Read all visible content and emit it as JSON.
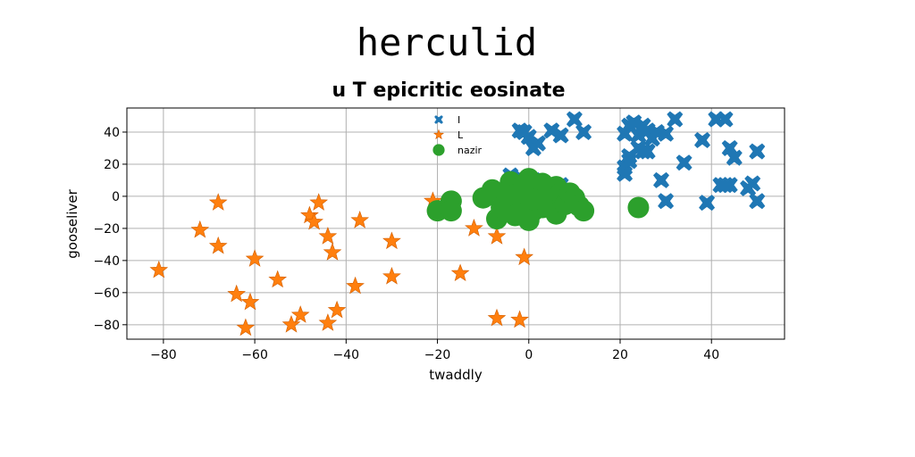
{
  "chart_data": {
    "type": "scatter",
    "suptitle": "herculid",
    "title": "u T epicritic eosinate",
    "xlabel": "twaddly",
    "ylabel": "gooseliver",
    "xlim": [
      -88,
      56
    ],
    "ylim": [
      -89,
      55
    ],
    "xticks": [
      -80,
      -60,
      -40,
      -20,
      0,
      20,
      40
    ],
    "yticks": [
      -80,
      -60,
      -40,
      -20,
      0,
      20,
      40
    ],
    "grid": true,
    "legend_position": "upper-center",
    "series": [
      {
        "name": "I",
        "marker": "x",
        "color": "#1f77b4",
        "points": [
          [
            -2,
            41
          ],
          [
            -1,
            40
          ],
          [
            0,
            37
          ],
          [
            1,
            30
          ],
          [
            2,
            33
          ],
          [
            5,
            41
          ],
          [
            7,
            38
          ],
          [
            10,
            48
          ],
          [
            12,
            40
          ],
          [
            21,
            39
          ],
          [
            22,
            44
          ],
          [
            23,
            46
          ],
          [
            24,
            38
          ],
          [
            25,
            44
          ],
          [
            26,
            41
          ],
          [
            27,
            36
          ],
          [
            28,
            40
          ],
          [
            30,
            39
          ],
          [
            32,
            48
          ],
          [
            22,
            25
          ],
          [
            24,
            30
          ],
          [
            25,
            28
          ],
          [
            26,
            28
          ],
          [
            21,
            18
          ],
          [
            21,
            14
          ],
          [
            22,
            22
          ],
          [
            29,
            10
          ],
          [
            30,
            -3
          ],
          [
            34,
            21
          ],
          [
            38,
            35
          ],
          [
            39,
            -4
          ],
          [
            41,
            48
          ],
          [
            43,
            48
          ],
          [
            42,
            7
          ],
          [
            43,
            7
          ],
          [
            44,
            7
          ],
          [
            44,
            30
          ],
          [
            45,
            24
          ],
          [
            48,
            5
          ],
          [
            49,
            8
          ],
          [
            50,
            28
          ],
          [
            50,
            -3
          ],
          [
            -4,
            13
          ],
          [
            -2,
            12
          ],
          [
            1,
            10
          ],
          [
            7,
            7
          ]
        ]
      },
      {
        "name": "L",
        "marker": "star",
        "color": "#ff7f0e",
        "points": [
          [
            -81,
            -46
          ],
          [
            -72,
            -21
          ],
          [
            -68,
            -4
          ],
          [
            -68,
            -31
          ],
          [
            -64,
            -61
          ],
          [
            -62,
            -82
          ],
          [
            -61,
            -66
          ],
          [
            -60,
            -39
          ],
          [
            -55,
            -52
          ],
          [
            -52,
            -80
          ],
          [
            -50,
            -74
          ],
          [
            -48,
            -12
          ],
          [
            -47,
            -16
          ],
          [
            -46,
            -4
          ],
          [
            -44,
            -25
          ],
          [
            -44,
            -79
          ],
          [
            -43,
            -35
          ],
          [
            -42,
            -71
          ],
          [
            -38,
            -56
          ],
          [
            -37,
            -15
          ],
          [
            -30,
            -28
          ],
          [
            -30,
            -50
          ],
          [
            -21,
            -3
          ],
          [
            -15,
            -48
          ],
          [
            -12,
            -20
          ],
          [
            -7,
            -25
          ],
          [
            -7,
            -76
          ],
          [
            -2,
            -77
          ],
          [
            -1,
            -38
          ]
        ]
      },
      {
        "name": "nazir",
        "marker": "circle",
        "color": "#2ca02c",
        "points": [
          [
            -20,
            -9
          ],
          [
            -17,
            -3
          ],
          [
            -17,
            -9
          ],
          [
            -10,
            -1
          ],
          [
            -8,
            4
          ],
          [
            -7,
            -14
          ],
          [
            -6,
            -7
          ],
          [
            -5,
            2
          ],
          [
            -4,
            -5
          ],
          [
            -4,
            9
          ],
          [
            -3,
            -12
          ],
          [
            -2,
            5
          ],
          [
            -1,
            -3
          ],
          [
            0,
            11
          ],
          [
            0,
            -4
          ],
          [
            1,
            -9
          ],
          [
            1,
            5
          ],
          [
            0,
            -15
          ],
          [
            2,
            0
          ],
          [
            3,
            -7
          ],
          [
            3,
            8
          ],
          [
            4,
            1
          ],
          [
            5,
            -3
          ],
          [
            6,
            6
          ],
          [
            6,
            -11
          ],
          [
            7,
            2
          ],
          [
            8,
            -5
          ],
          [
            9,
            2
          ],
          [
            10,
            -1
          ],
          [
            11,
            -6
          ],
          [
            12,
            -9
          ],
          [
            -3,
            1
          ],
          [
            2,
            2
          ],
          [
            -1,
            7
          ],
          [
            1,
            -2
          ],
          [
            24,
            -7
          ]
        ]
      }
    ]
  }
}
